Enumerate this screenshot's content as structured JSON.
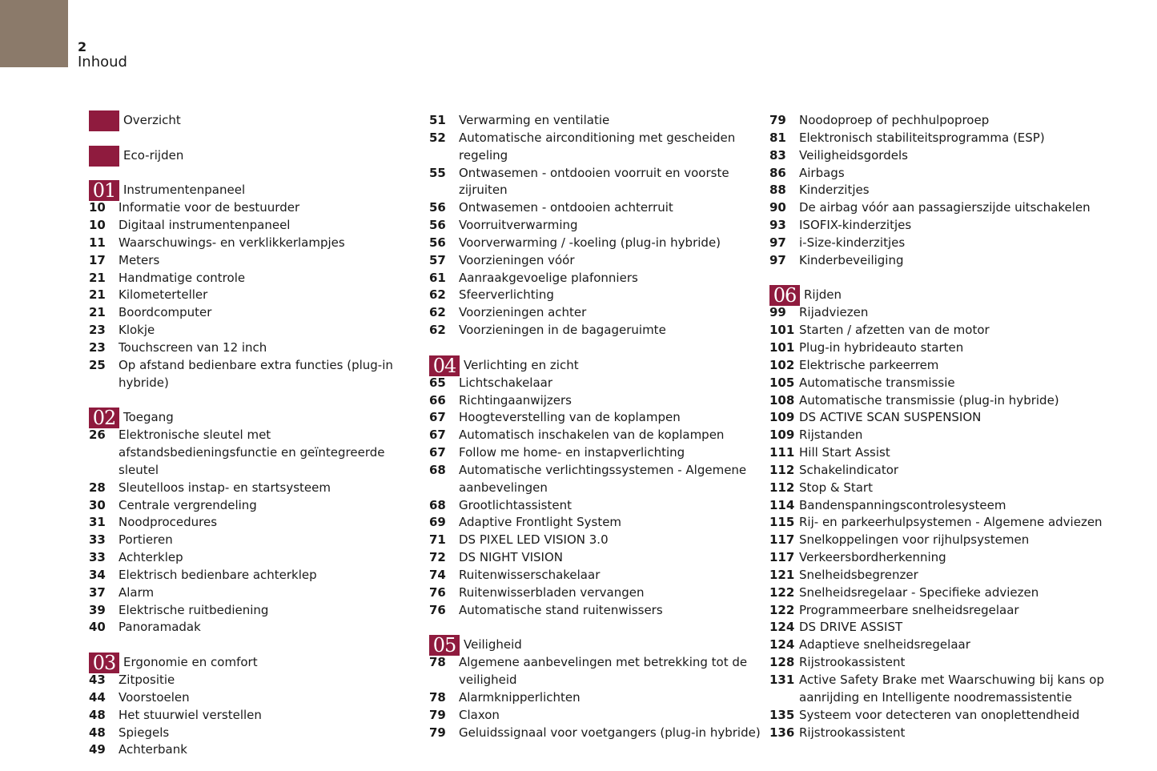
{
  "page": {
    "number": "2",
    "title": "Inhoud"
  },
  "colors": {
    "corner": "#8b7a6a",
    "accent": "#8f1b3e"
  },
  "columns": [
    [
      {
        "badge": "",
        "title": "Overzicht"
      },
      {
        "badge": "",
        "title": "Eco-rijden"
      },
      {
        "badge": "01",
        "title": "Instrumentenpaneel"
      },
      {
        "page": "10",
        "text": "Informatie voor de bestuurder"
      },
      {
        "page": "10",
        "text": "Digitaal instrumentenpaneel"
      },
      {
        "page": "11",
        "text": "Waarschuwings- en verklikkerlampjes"
      },
      {
        "page": "17",
        "text": "Meters"
      },
      {
        "page": "21",
        "text": "Handmatige controle"
      },
      {
        "page": "21",
        "text": "Kilometerteller"
      },
      {
        "page": "21",
        "text": "Boordcomputer"
      },
      {
        "page": "23",
        "text": "Klokje"
      },
      {
        "page": "23",
        "text": "Touchscreen van 12 inch"
      },
      {
        "page": "25",
        "text": "Op afstand bedienbare extra functies (plug-in\nhybride)"
      },
      {
        "badge": "02",
        "title": "Toegang"
      },
      {
        "page": "26",
        "text": "Elektronische sleutel met\nafstandsbedieningsfunctie en geïntegreerde sleutel"
      },
      {
        "page": "28",
        "text": "Sleutelloos instap- en startsysteem"
      },
      {
        "page": "30",
        "text": "Centrale vergrendeling"
      },
      {
        "page": "31",
        "text": "Noodprocedures"
      },
      {
        "page": "33",
        "text": "Portieren"
      },
      {
        "page": "33",
        "text": "Achterklep"
      },
      {
        "page": "34",
        "text": "Elektrisch bedienbare achterklep"
      },
      {
        "page": "37",
        "text": "Alarm"
      },
      {
        "page": "39",
        "text": "Elektrische ruitbediening"
      },
      {
        "page": "40",
        "text": "Panoramadak"
      },
      {
        "badge": "03",
        "title": "Ergonomie en comfort"
      },
      {
        "page": "43",
        "text": "Zitpositie"
      },
      {
        "page": "44",
        "text": "Voorstoelen"
      },
      {
        "page": "48",
        "text": "Het stuurwiel verstellen"
      },
      {
        "page": "48",
        "text": "Spiegels"
      },
      {
        "page": "49",
        "text": "Achterbank"
      }
    ],
    [
      {
        "page": "51",
        "text": "Verwarming en ventilatie"
      },
      {
        "page": "52",
        "text": "Automatische airconditioning met gescheiden\nregeling"
      },
      {
        "page": "55",
        "text": "Ontwasemen - ontdooien voorruit en voorste\nzijruiten"
      },
      {
        "page": "56",
        "text": "Ontwasemen - ontdooien achterruit"
      },
      {
        "page": "56",
        "text": "Voorruitverwarming"
      },
      {
        "page": "56",
        "text": "Voorverwarming / -koeling (plug-in hybride)"
      },
      {
        "page": "57",
        "text": "Voorzieningen vóór"
      },
      {
        "page": "61",
        "text": "Aanraakgevoelige plafonniers"
      },
      {
        "page": "62",
        "text": "Sfeerverlichting"
      },
      {
        "page": "62",
        "text": "Voorzieningen achter"
      },
      {
        "page": "62",
        "text": "Voorzieningen in de bagageruimte"
      },
      {
        "badge": "04",
        "title": "Verlichting en zicht"
      },
      {
        "page": "65",
        "text": "Lichtschakelaar"
      },
      {
        "page": "66",
        "text": "Richtingaanwijzers"
      },
      {
        "page": "67",
        "text": "Hoogteverstelling van de koplampen"
      },
      {
        "page": "67",
        "text": "Automatisch inschakelen van de koplampen"
      },
      {
        "page": "67",
        "text": "Follow me home- en instapverlichting"
      },
      {
        "page": "68",
        "text": "Automatische verlichtingssystemen - Algemene\naanbevelingen"
      },
      {
        "page": "68",
        "text": "Grootlichtassistent"
      },
      {
        "page": "69",
        "text": "Adaptive Frontlight System"
      },
      {
        "page": "71",
        "text": "DS PIXEL LED VISION 3.0"
      },
      {
        "page": "72",
        "text": "DS NIGHT VISION"
      },
      {
        "page": "74",
        "text": "Ruitenwisserschakelaar"
      },
      {
        "page": "76",
        "text": "Ruitenwisserbladen vervangen"
      },
      {
        "page": "76",
        "text": "Automatische stand ruitenwissers"
      },
      {
        "badge": "05",
        "title": "Veiligheid"
      },
      {
        "page": "78",
        "text": "Algemene aanbevelingen met betrekking tot de\nveiligheid"
      },
      {
        "page": "78",
        "text": "Alarmknipperlichten"
      },
      {
        "page": "79",
        "text": "Claxon"
      },
      {
        "page": "79",
        "text": "Geluidssignaal voor voetgangers (plug-in hybride)"
      }
    ],
    [
      {
        "page": "79",
        "text": "Noodoproep of pechhulpoproep"
      },
      {
        "page": "81",
        "text": "Elektronisch stabiliteitsprogramma (ESP)"
      },
      {
        "page": "83",
        "text": "Veiligheidsgordels"
      },
      {
        "page": "86",
        "text": "Airbags"
      },
      {
        "page": "88",
        "text": "Kinderzitjes"
      },
      {
        "page": "90",
        "text": "De airbag vóór aan passagierszijde uitschakelen"
      },
      {
        "page": "93",
        "text": "ISOFIX-kinderzitjes"
      },
      {
        "page": "97",
        "text": "i-Size-kinderzitjes"
      },
      {
        "page": "97",
        "text": "Kinderbeveiliging"
      },
      {
        "badge": "06",
        "title": "Rijden"
      },
      {
        "page": "99",
        "text": "Rijadviezen"
      },
      {
        "page": "101",
        "text": "Starten / afzetten van de motor"
      },
      {
        "page": "101",
        "text": "Plug-in hybrideauto starten"
      },
      {
        "page": "102",
        "text": "Elektrische parkeerrem"
      },
      {
        "page": "105",
        "text": "Automatische transmissie"
      },
      {
        "page": "108",
        "text": "Automatische transmissie (plug-in hybride)"
      },
      {
        "page": "109",
        "text": "DS ACTIVE SCAN SUSPENSION"
      },
      {
        "page": "109",
        "text": "Rijstanden"
      },
      {
        "page": "111",
        "text": "Hill Start Assist"
      },
      {
        "page": "112",
        "text": "Schakelindicator"
      },
      {
        "page": "112",
        "text": "Stop & Start"
      },
      {
        "page": "114",
        "text": "Bandenspanningscontrolesysteem"
      },
      {
        "page": "115",
        "text": "Rij- en parkeerhulpsystemen - Algemene adviezen"
      },
      {
        "page": "117",
        "text": "Snelkoppelingen voor rijhulpsystemen"
      },
      {
        "page": "117",
        "text": "Verkeersbordherkenning"
      },
      {
        "page": "121",
        "text": "Snelheidsbegrenzer"
      },
      {
        "page": "122",
        "text": "Snelheidsregelaar - Specifieke adviezen"
      },
      {
        "page": "122",
        "text": "Programmeerbare snelheidsregelaar"
      },
      {
        "page": "124",
        "text": "DS DRIVE ASSIST"
      },
      {
        "page": "124",
        "text": "Adaptieve snelheidsregelaar"
      },
      {
        "page": "128",
        "text": "Rijstrookassistent"
      },
      {
        "page": "131",
        "text": "Active Safety Brake met Waarschuwing bij kans op\naanrijding en Intelligente noodremassistentie"
      },
      {
        "page": "135",
        "text": "Systeem voor detecteren van onoplettendheid"
      },
      {
        "page": "136",
        "text": "Rijstrookassistent"
      }
    ]
  ]
}
